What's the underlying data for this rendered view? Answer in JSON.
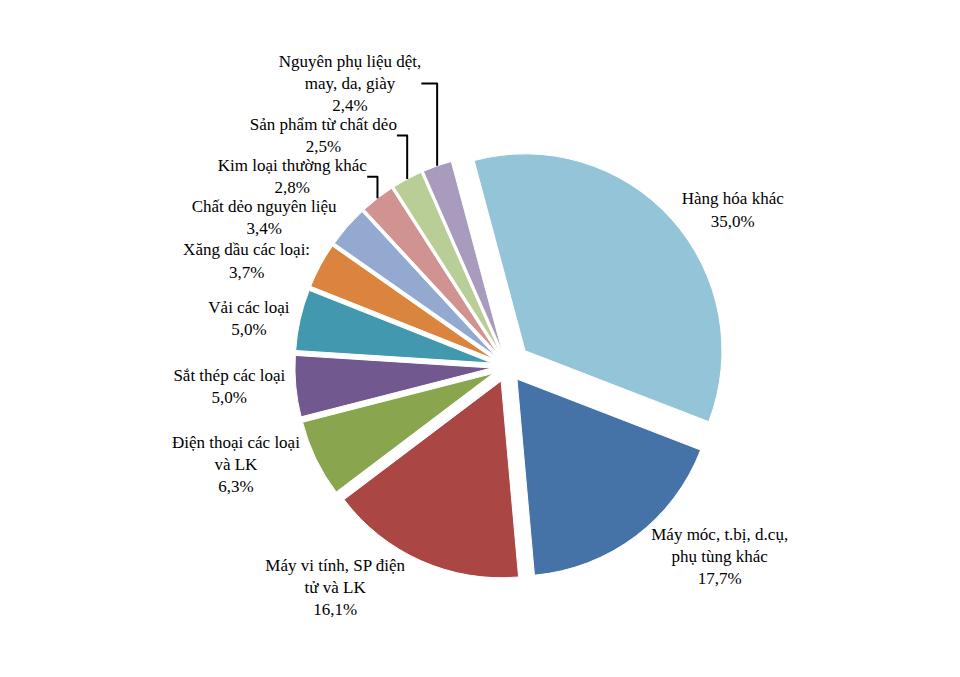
{
  "chart_data": {
    "type": "pie",
    "categories": [
      "Hàng hóa khác",
      "Máy móc, t.bị, d.cụ, phụ tùng khác",
      "Máy vi tính, SP điện tử và LK",
      "Điện thoại các loại và LK",
      "Sắt thép các loại",
      "Vải các loại",
      "Xăng dầu các loại:",
      "Chất dẻo nguyên liệu",
      "Kim loại thường khác",
      "Sản phẩm từ chất dẻo",
      "Nguyên phụ liệu dệt, may, da, giày"
    ],
    "values": [
      35.0,
      17.7,
      16.1,
      6.3,
      5.0,
      5.0,
      3.7,
      3.4,
      2.8,
      2.5,
      2.4
    ],
    "value_labels": [
      "35,0%",
      "17,7%",
      "16,1%",
      "6,3%",
      "5,0%",
      "5,0%",
      "3,7%",
      "3,4%",
      "2,8%",
      "2,5%",
      "2,4%"
    ],
    "colors": [
      "#93c4d7",
      "#4572a7",
      "#aa4643",
      "#89a54e",
      "#71588f",
      "#4198af",
      "#db843d",
      "#93a9cf",
      "#d19392",
      "#b9cd96",
      "#a99bbd"
    ],
    "data_labels": true
  }
}
